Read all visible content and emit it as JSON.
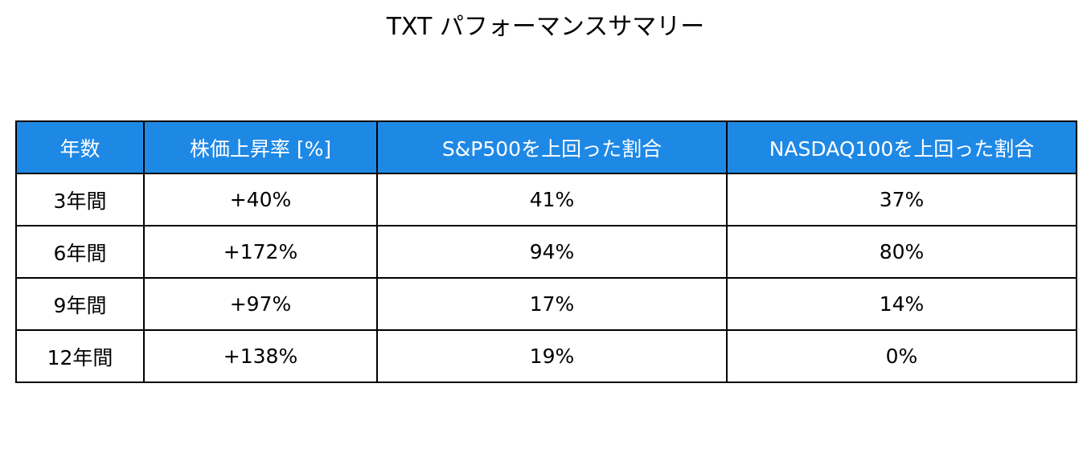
{
  "chart_data": {
    "type": "table",
    "title": "TXT パフォーマンスサマリー",
    "header_color": "#1e88e5",
    "columns": [
      "年数",
      "株価上昇率 [%]",
      "S&P500を上回った割合",
      "NASDAQ100を上回った割合"
    ],
    "rows": [
      [
        "3年間",
        "+40%",
        "41%",
        "37%"
      ],
      [
        "6年間",
        "+172%",
        "94%",
        "80%"
      ],
      [
        "9年間",
        "+97%",
        "17%",
        "14%"
      ],
      [
        "12年間",
        "+138%",
        "19%",
        "0%"
      ]
    ]
  }
}
